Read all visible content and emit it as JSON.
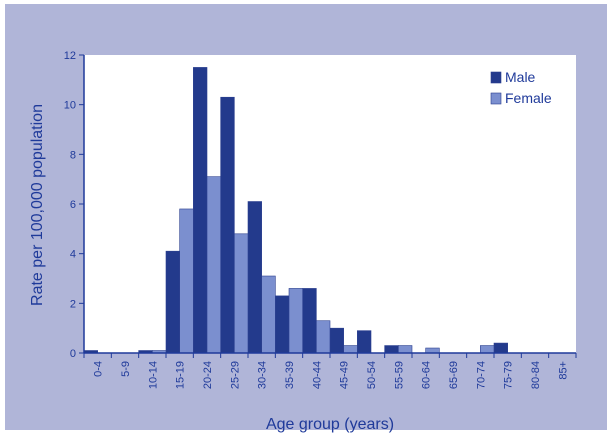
{
  "chart_data": {
    "type": "bar",
    "title": "",
    "xlabel": "Age group (years)",
    "ylabel": "Rate per 100,000 population",
    "ylim": [
      0,
      12
    ],
    "yticks": [
      "0",
      "2",
      "4",
      "6",
      "8",
      "10",
      "12"
    ],
    "categories": [
      "0-4",
      "5-9",
      "10-14",
      "15-19",
      "20-24",
      "25-29",
      "30-34",
      "35-39",
      "40-44",
      "45-49",
      "50-54",
      "55-59",
      "60-64",
      "65-69",
      "70-74",
      "75-79",
      "80-84",
      "85+"
    ],
    "series": [
      {
        "name": "Male",
        "color": "#233a8c",
        "values": [
          0.1,
          0,
          0.1,
          4.1,
          11.5,
          10.3,
          6.1,
          2.3,
          2.6,
          1.0,
          0.9,
          0.3,
          0,
          0,
          0,
          0.4,
          0,
          0
        ]
      },
      {
        "name": "Female",
        "color": "#7b8fcf",
        "values": [
          0,
          0,
          0.1,
          5.8,
          7.1,
          4.8,
          3.1,
          2.6,
          1.3,
          0.3,
          0,
          0.3,
          0.2,
          0,
          0.3,
          0,
          0,
          0
        ]
      }
    ],
    "legend_position": "top-right",
    "grid": false
  }
}
